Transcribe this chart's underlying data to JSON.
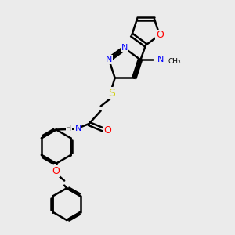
{
  "background_color": "#ebebeb",
  "bond_color": "#000000",
  "bond_width": 1.8,
  "atom_colors": {
    "N": "#0000ff",
    "O": "#ff0000",
    "S": "#cccc00",
    "C": "#000000",
    "H": "#808080"
  },
  "font_size": 8
}
